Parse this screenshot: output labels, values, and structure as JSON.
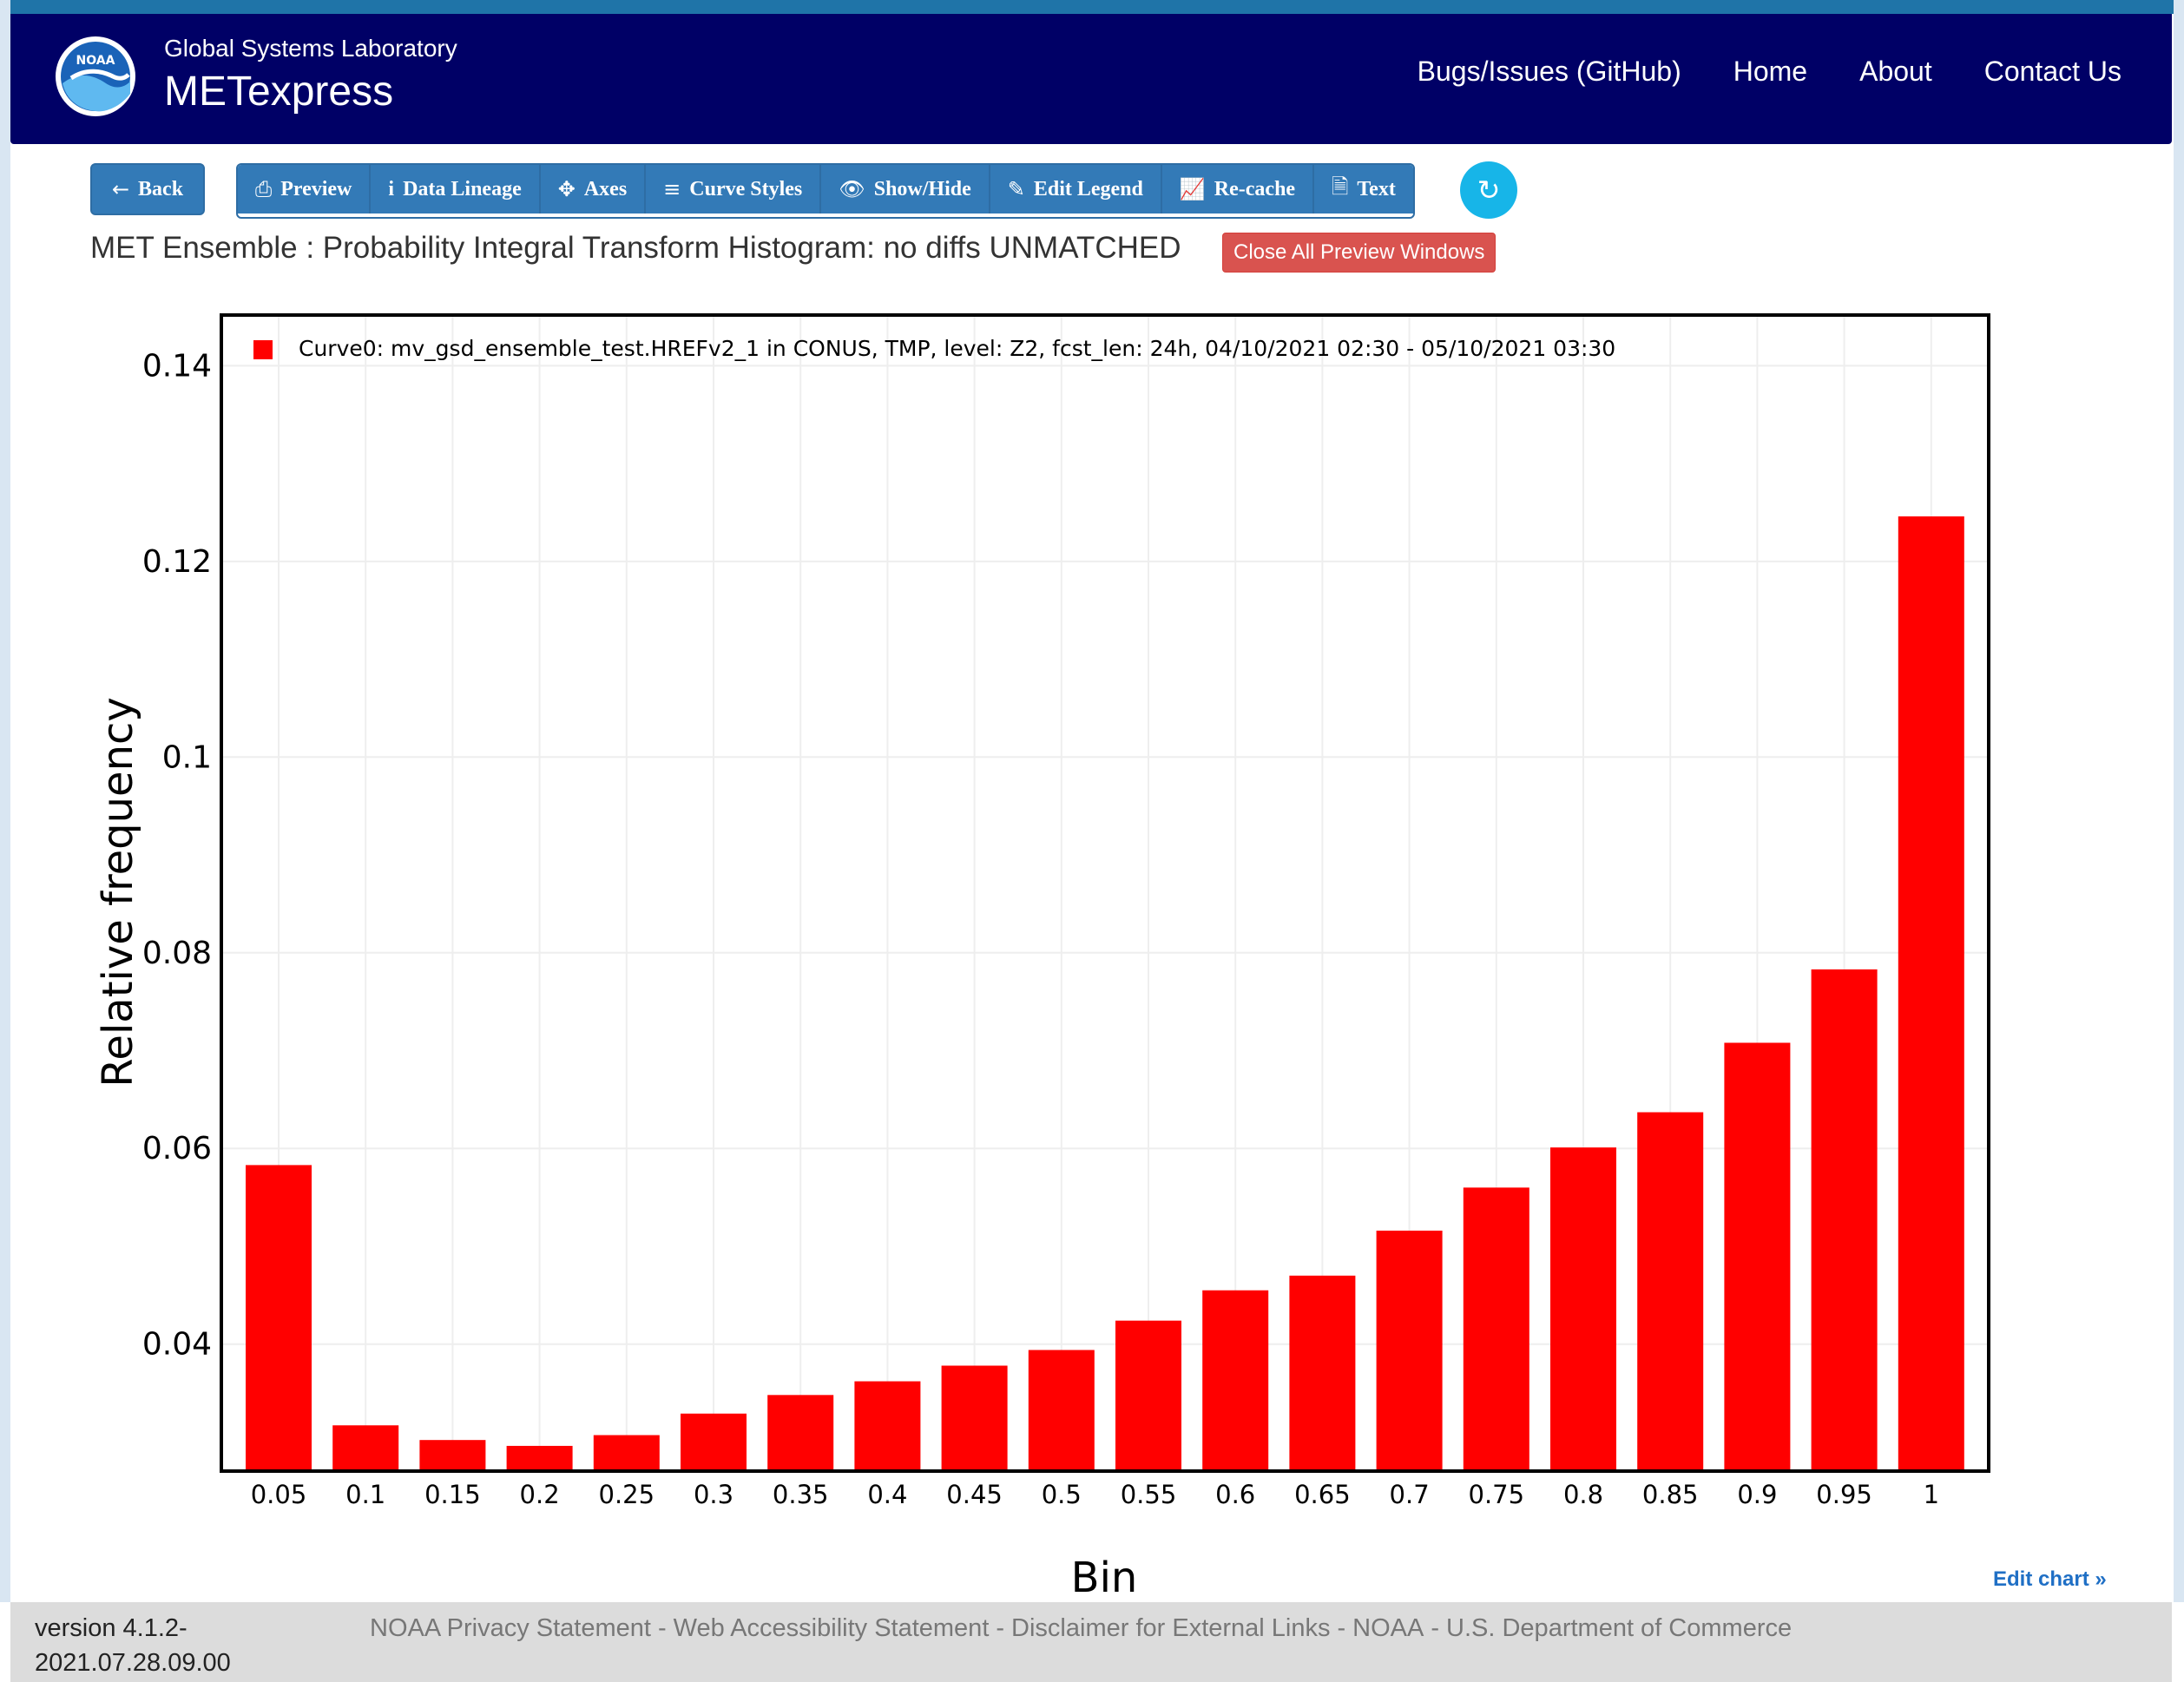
{
  "header": {
    "logo_text": "NOAA",
    "org": "Global Systems Laboratory",
    "app": "METexpress",
    "nav": [
      "Bugs/Issues (GitHub)",
      "Home",
      "About",
      "Contact Us"
    ]
  },
  "toolbar": {
    "back": "Back",
    "buttons": [
      "Preview",
      "Data Lineage",
      "Axes",
      "Curve Styles",
      "Show/Hide",
      "Edit Legend",
      "Re-cache",
      "Text"
    ]
  },
  "page": {
    "title": "MET Ensemble : Probability Integral Transform Histogram: no diffs UNMATCHED",
    "close_label": "Close All Preview Windows",
    "edit_chart": "Edit chart »"
  },
  "chart_data": {
    "type": "bar",
    "xlabel": "Bin",
    "ylabel": "Relative frequency",
    "categories": [
      "0.05",
      "0.1",
      "0.15",
      "0.2",
      "0.25",
      "0.3",
      "0.35",
      "0.4",
      "0.45",
      "0.5",
      "0.55",
      "0.6",
      "0.65",
      "0.7",
      "0.75",
      "0.8",
      "0.85",
      "0.9",
      "0.95",
      "1"
    ],
    "yticks": [
      "0.04",
      "0.06",
      "0.08",
      "0.1",
      "0.12",
      "0.14"
    ],
    "ylim": [
      0.0272,
      0.145
    ],
    "grid": true,
    "legend_position": "top-left",
    "series": [
      {
        "name": "Curve0: mv_gsd_ensemble_test.HREFv2_1 in CONUS, TMP, level: Z2, fcst_len: 24h, 04/10/2021 02:30 - 05/10/2021 03:30",
        "color": "#ff0000",
        "values": [
          0.0583,
          0.0317,
          0.0302,
          0.0296,
          0.0307,
          0.0329,
          0.0348,
          0.0362,
          0.0378,
          0.0394,
          0.0424,
          0.0455,
          0.047,
          0.0516,
          0.056,
          0.0601,
          0.0637,
          0.0708,
          0.0783,
          0.1246
        ]
      }
    ]
  },
  "footer": {
    "version_line1": "version 4.1.2-",
    "version_line2": "2021.07.28.09.00",
    "links": [
      "NOAA Privacy Statement",
      "Web Accessibility Statement",
      "Disclaimer for External Links",
      "NOAA",
      "U.S. Department of Commerce"
    ]
  }
}
